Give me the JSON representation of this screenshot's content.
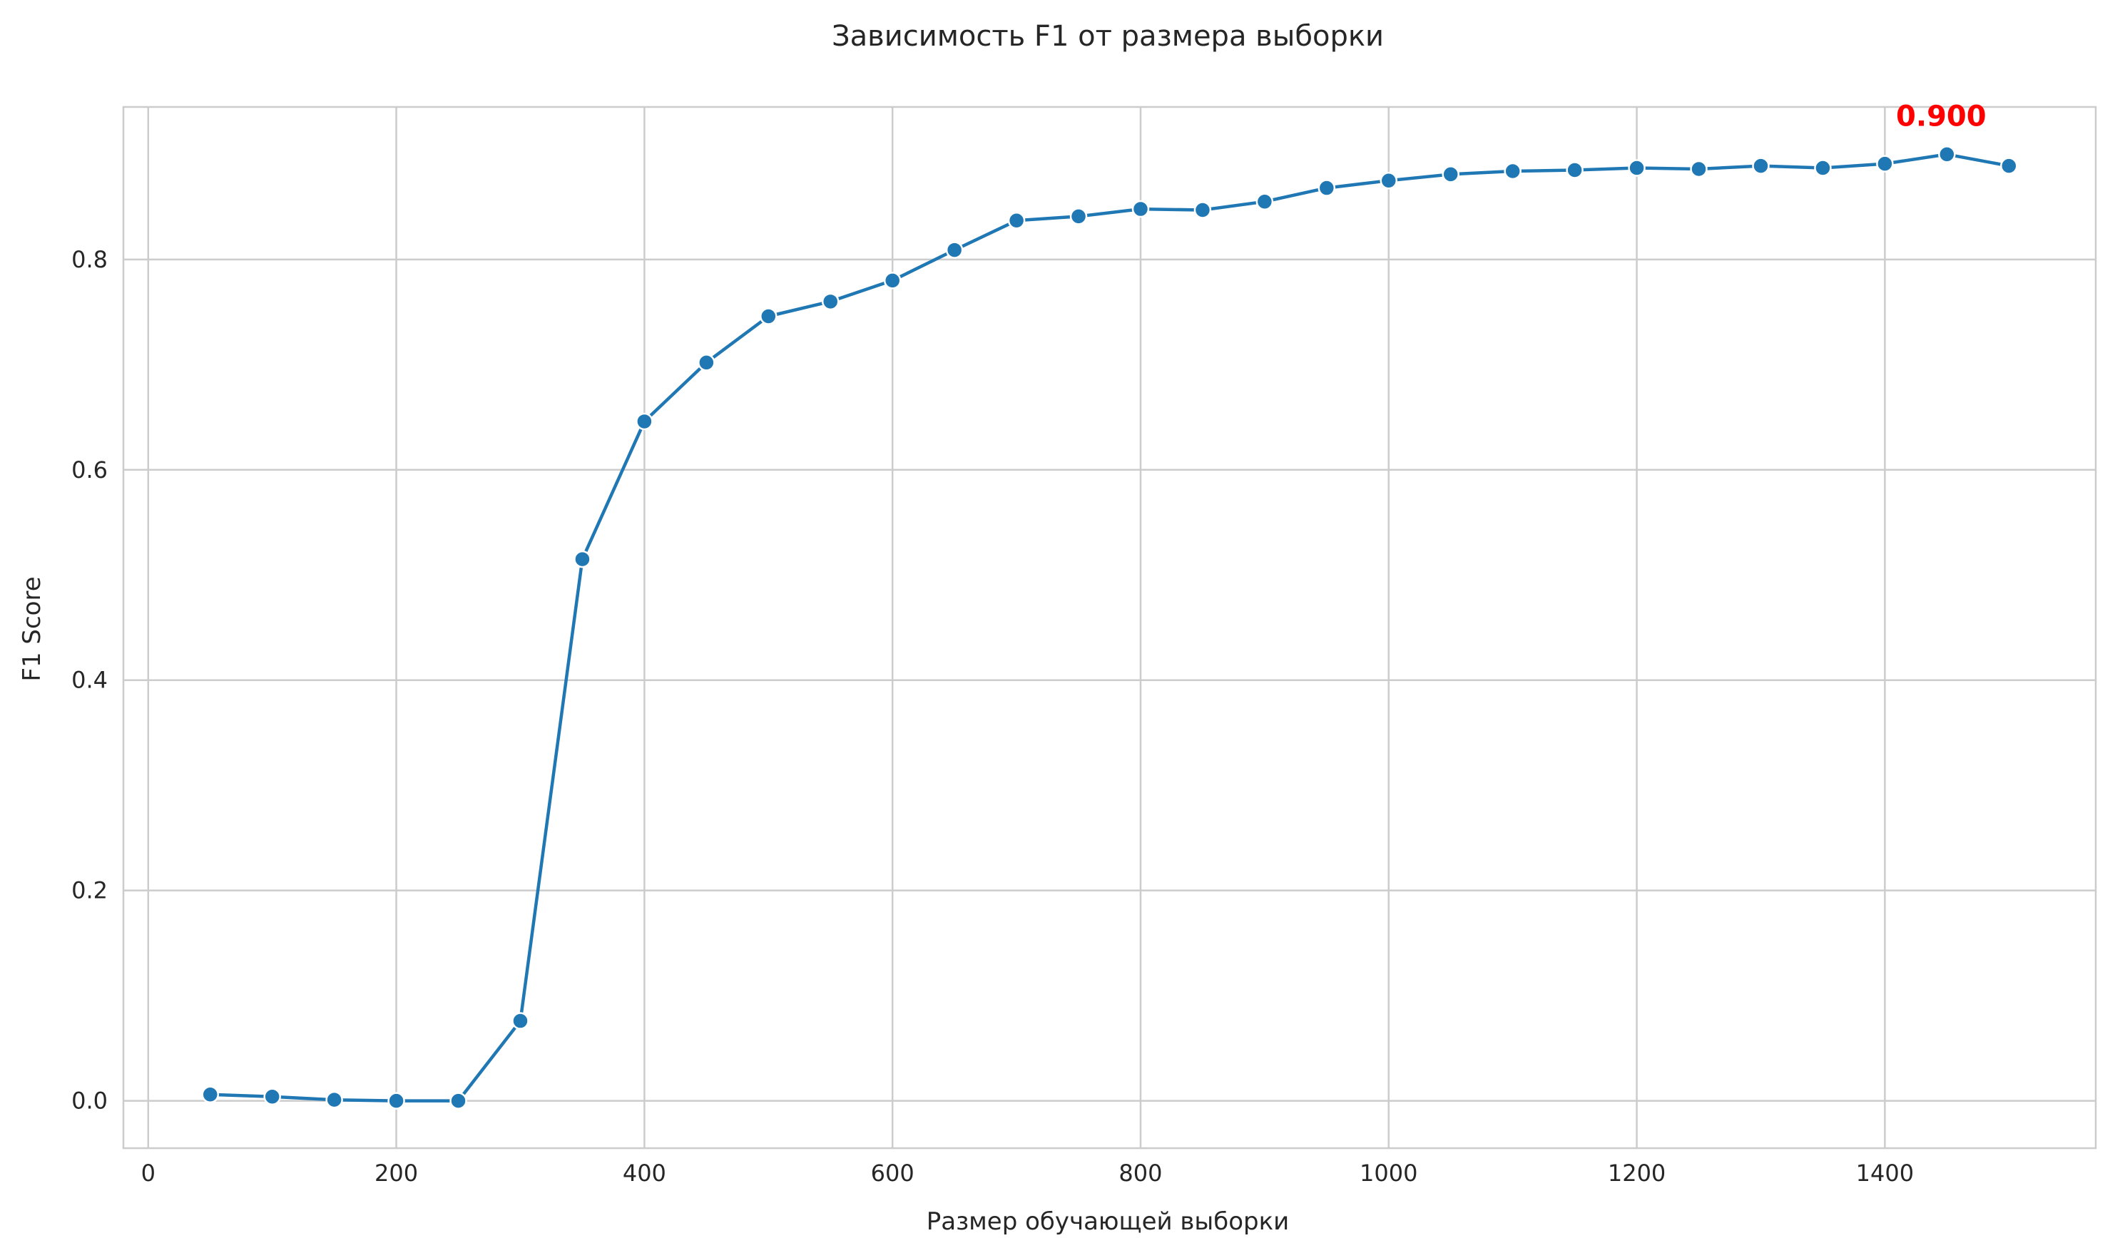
{
  "chart_data": {
    "type": "line",
    "title": "Зависимость F1 от размера выборки",
    "xlabel": "Размер обучающей выборки",
    "ylabel": "F1 Score",
    "xlim": [
      -20,
      1570
    ],
    "ylim": [
      -0.045,
      0.945
    ],
    "xticks": [
      0,
      200,
      400,
      600,
      800,
      1000,
      1200,
      1400
    ],
    "yticks": [
      0.0,
      0.2,
      0.4,
      0.6,
      0.8
    ],
    "ytick_labels": [
      "0.0",
      "0.2",
      "0.4",
      "0.6",
      "0.8"
    ],
    "grid": true,
    "series": [
      {
        "color": "#1f77b4",
        "x": [
          50,
          100,
          150,
          200,
          250,
          300,
          350,
          400,
          450,
          500,
          550,
          600,
          650,
          700,
          750,
          800,
          850,
          900,
          950,
          1000,
          1050,
          1100,
          1150,
          1200,
          1250,
          1300,
          1350,
          1400,
          1450,
          1500
        ],
        "y": [
          0.006,
          0.004,
          0.001,
          0.0,
          0.0,
          0.076,
          0.515,
          0.646,
          0.702,
          0.746,
          0.76,
          0.78,
          0.809,
          0.837,
          0.841,
          0.848,
          0.847,
          0.855,
          0.868,
          0.875,
          0.881,
          0.884,
          0.885,
          0.887,
          0.886,
          0.889,
          0.887,
          0.891,
          0.9,
          0.889
        ]
      }
    ],
    "annotation": {
      "text": "0.900",
      "x": 1450,
      "y": 0.9,
      "color": "#ff0000"
    }
  }
}
